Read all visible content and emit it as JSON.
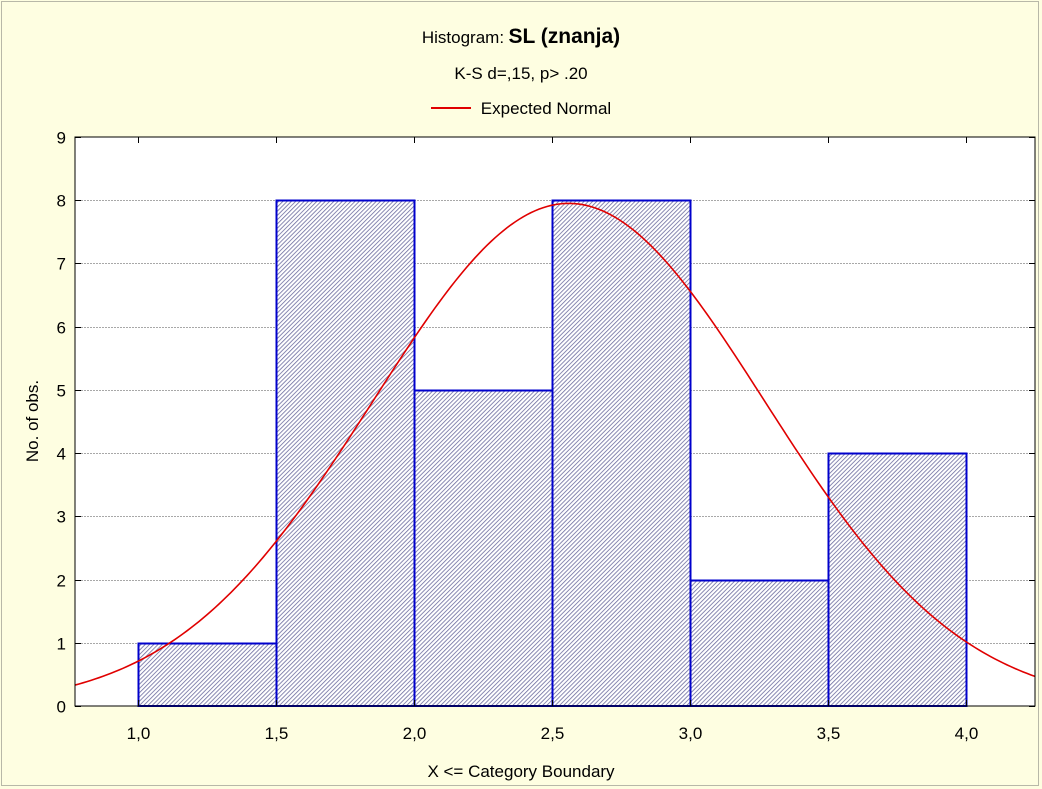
{
  "chart_data": {
    "type": "bar",
    "title_prefix": "Histogram:",
    "title": "SL (znanja)",
    "subtitle": "K-S d=,15, p> .20",
    "xlabel": "X <= Category Boundary",
    "ylabel": "No. of obs.",
    "xlim": [
      0.77,
      4.25
    ],
    "ylim": [
      0,
      9
    ],
    "x_ticks": [
      1.0,
      1.5,
      2.0,
      2.5,
      3.0,
      3.5,
      4.0
    ],
    "x_tick_labels": [
      "1,0",
      "1,5",
      "2,0",
      "2,5",
      "3,0",
      "3,5",
      "4,0"
    ],
    "y_ticks": [
      0,
      1,
      2,
      3,
      4,
      5,
      6,
      7,
      8,
      9
    ],
    "y_tick_labels": [
      "0",
      "1",
      "2",
      "3",
      "4",
      "5",
      "6",
      "7",
      "8",
      "9"
    ],
    "bins": [
      {
        "from": 1.0,
        "to": 1.5,
        "count": 1
      },
      {
        "from": 1.5,
        "to": 2.0,
        "count": 8
      },
      {
        "from": 2.0,
        "to": 2.5,
        "count": 5
      },
      {
        "from": 2.5,
        "to": 3.0,
        "count": 8
      },
      {
        "from": 3.0,
        "to": 3.5,
        "count": 2
      },
      {
        "from": 3.5,
        "to": 4.0,
        "count": 4
      }
    ],
    "expected_normal": {
      "name": "Expected Normal",
      "color": "#e00000",
      "mean": 2.56,
      "sd": 0.71,
      "peak": 7.95
    },
    "bar_edge_color": "#0000cc",
    "bar_hatch_color": "#6b6b9e",
    "background_color": "#fefee1",
    "grid": true,
    "legend_position": "top-center"
  }
}
